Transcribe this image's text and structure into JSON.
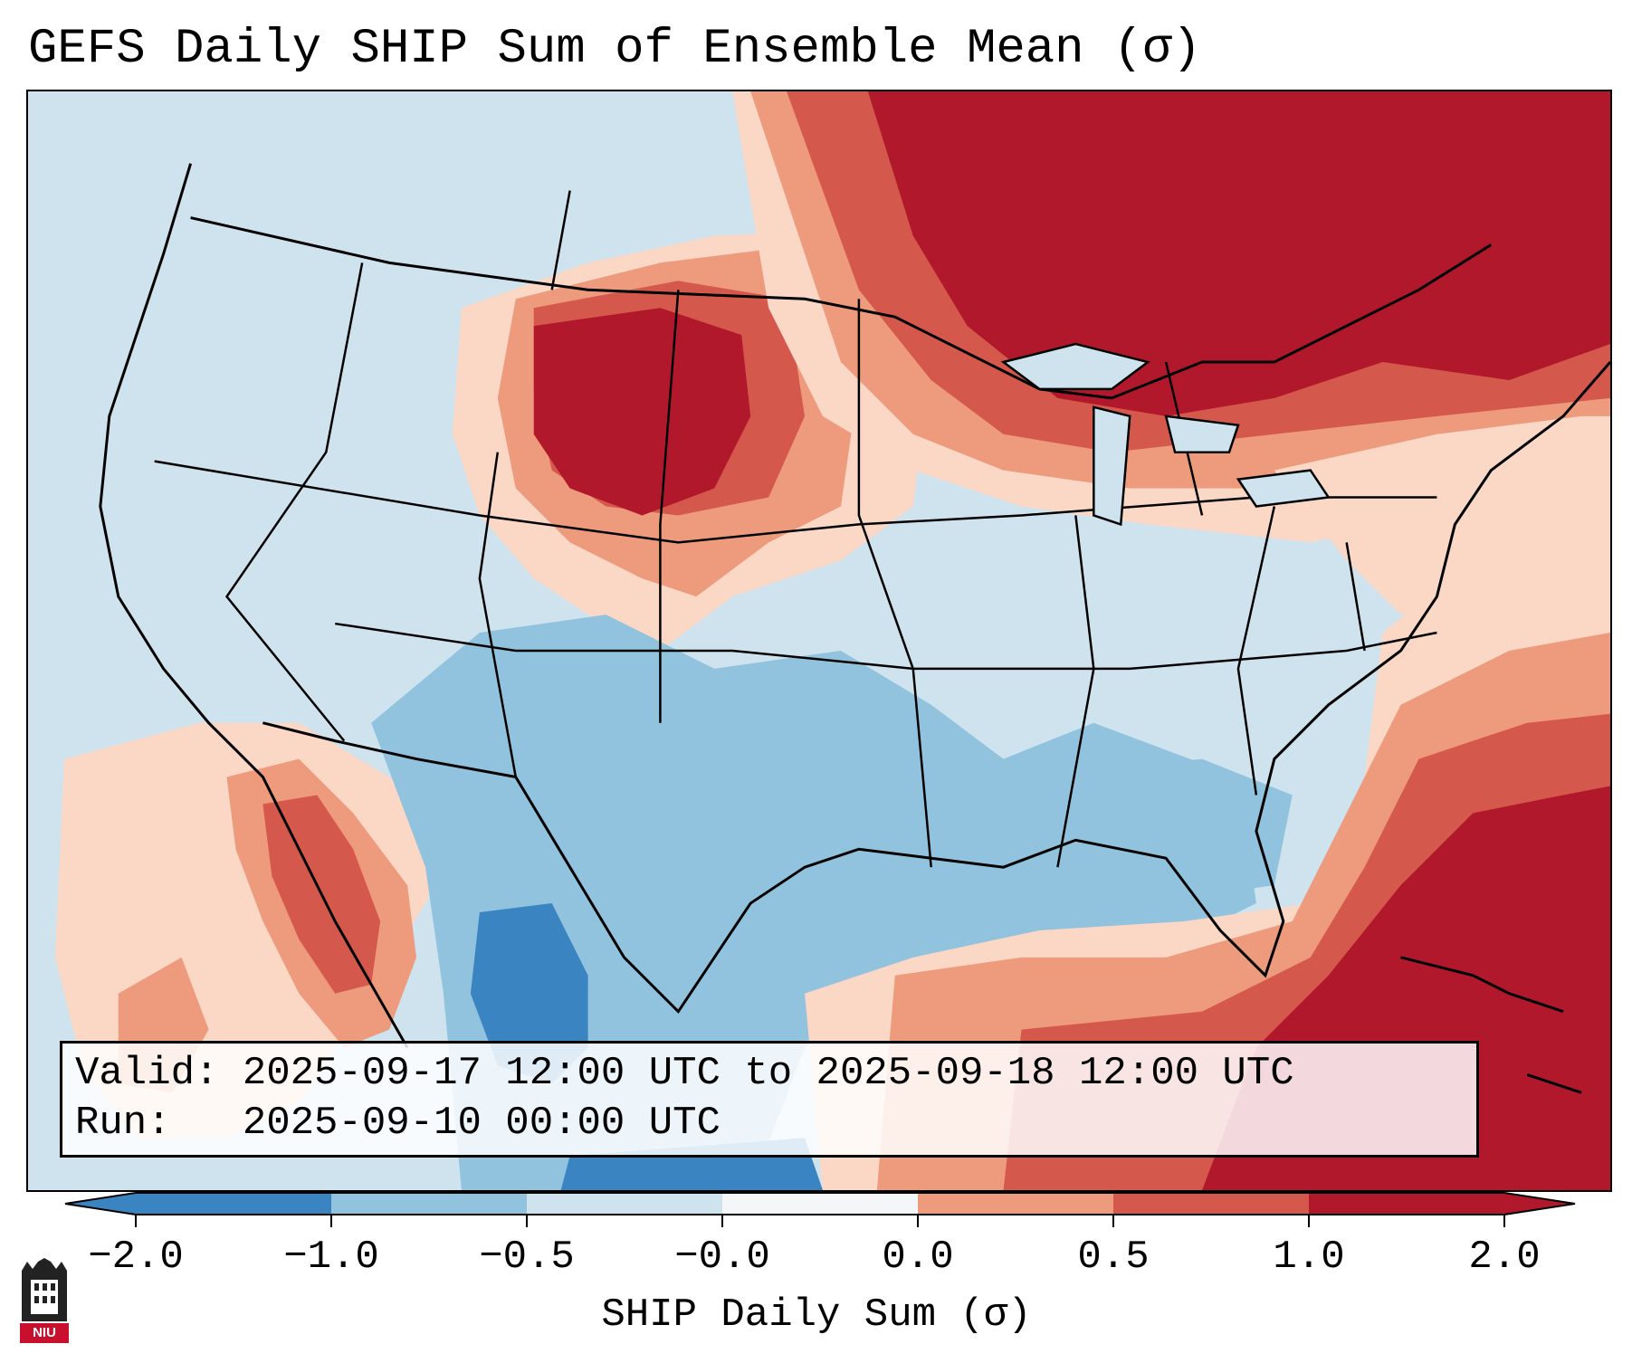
{
  "title": "GEFS Daily SHIP Sum of Ensemble Mean (σ)",
  "info": {
    "valid_label": "Valid:",
    "valid_value": "2025-09-17 12:00 UTC to 2025-09-18 12:00 UTC",
    "run_label": "Run:",
    "run_value": "2025-09-10 00:00 UTC"
  },
  "colorbar": {
    "label": "SHIP Daily Sum (σ)",
    "ticks": [
      "−2.0",
      "−1.0",
      "−0.5",
      "−0.0",
      "0.0",
      "0.5",
      "1.0",
      "2.0"
    ],
    "colors": [
      "#3a85c1",
      "#91c3de",
      "#cfe3ef",
      "#f5f6f7",
      "#fbd7c5",
      "#ee9a7c",
      "#d4584b",
      "#b2182b"
    ],
    "extend_low_color": "#3a85c1",
    "extend_high_color": "#b2182b"
  },
  "logo": {
    "text": "NIU",
    "color": "#c8102e"
  },
  "map": {
    "background_color": "#cfe3ef",
    "ocean_pattern_note": "",
    "level_colors": {
      "strong_neg": "#3a85c1",
      "neg": "#91c3de",
      "weak_neg": "#cfe3ef",
      "weak_pos": "#fbd7c5",
      "pos": "#ee9a7c",
      "mod_pos": "#d4584b",
      "strong_pos": "#b2182b"
    }
  }
}
